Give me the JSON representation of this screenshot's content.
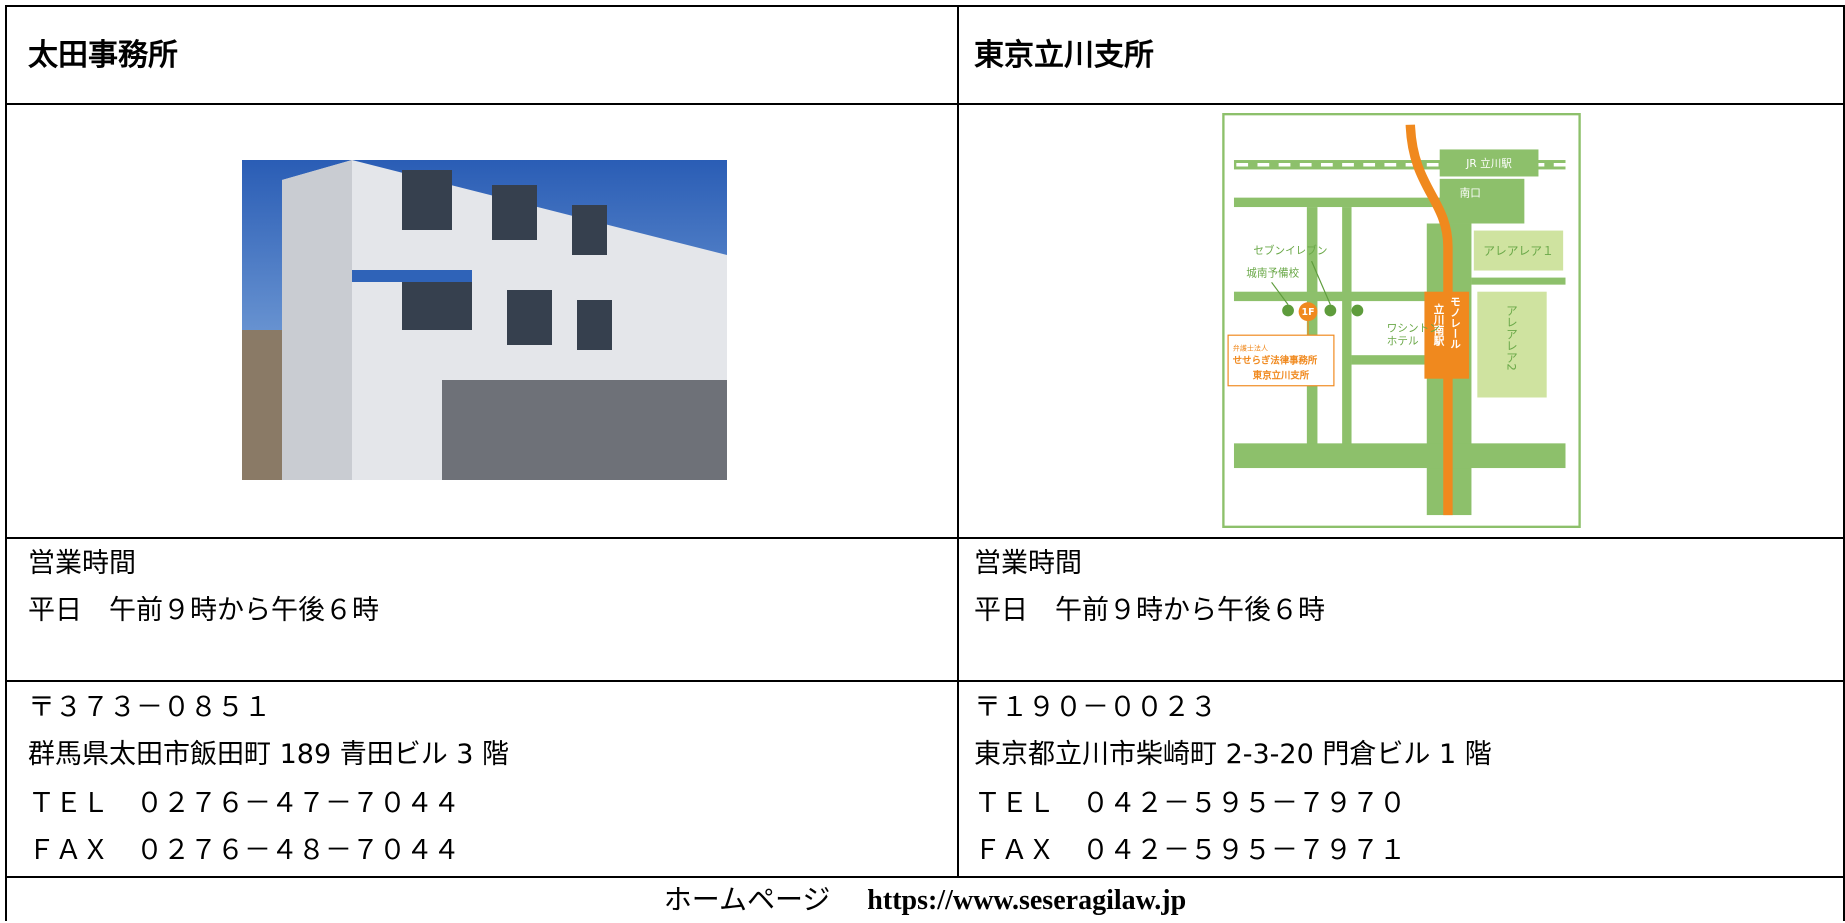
{
  "offices": [
    {
      "name": "太田事務所",
      "hours_label": "営業時間",
      "hours": "平日　午前９時から午後６時",
      "postal": "〒３７３－０８５１",
      "address": "群馬県太田市飯田町 189 青田ビル 3 階",
      "tel": "ＴＥＬ　０２７６－４７－７０４４",
      "fax": "ＦＡＸ　０２７６－４８－７０４４"
    },
    {
      "name": "東京立川支所",
      "hours_label": "営業時間",
      "hours": "平日　午前９時から午後６時",
      "postal": "〒１９０－００２３",
      "address": "東京都立川市柴崎町 2-3-20 門倉ビル 1 階",
      "tel": "ＴＥＬ　０４２－５９５－７９７０",
      "fax": "ＦＡＸ　０４２－５９５－７９７１"
    }
  ],
  "map": {
    "jr_station": "JR 立川駅",
    "south_exit": "南口",
    "seven_eleven": "セブンイレブン",
    "jonan": "城南予備校",
    "washington": "ワシントン",
    "washington_2": "ホテル",
    "area1": "アレアレア１",
    "area2": "アレアレア2",
    "monorail": "モノレール",
    "monorail_2": "立川南駅",
    "floor": "1F",
    "office_1": "弁護士法人",
    "office_2": "せせらぎ法律事務所",
    "office_3": "東京立川支所"
  },
  "footer": {
    "label": "ホームページ",
    "url": "https://www.seseragilaw.jp"
  }
}
